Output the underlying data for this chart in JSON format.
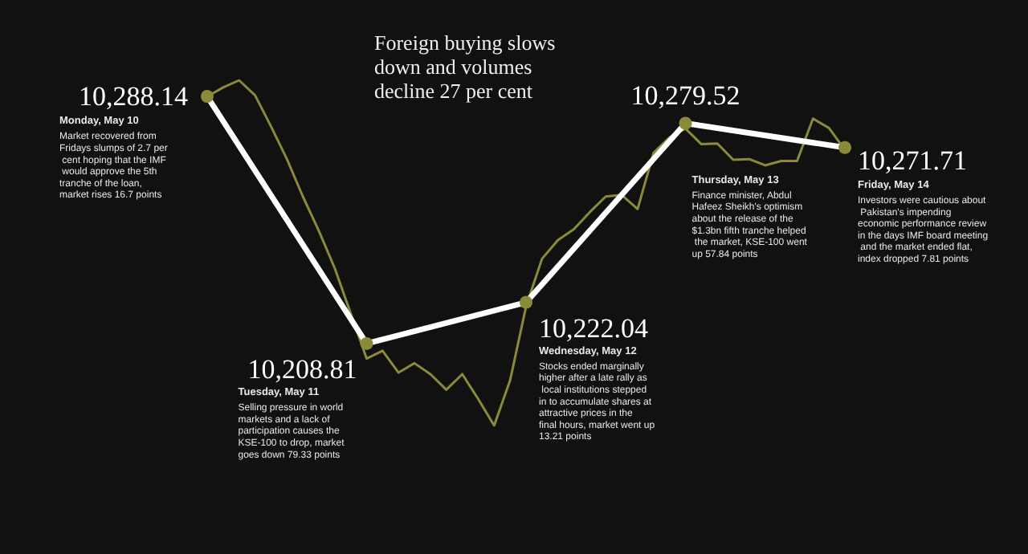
{
  "chart_data": {
    "type": "line",
    "title": "Foreign buying slows down and volumes decline 27 per cent",
    "tick_labels": false,
    "marker": "circle",
    "line_style": "solid",
    "categories": [
      null,
      null,
      null,
      null,
      null,
      null,
      null,
      null,
      null,
      null,
      null,
      null,
      null,
      null,
      null,
      null,
      null,
      null,
      null,
      null,
      null,
      null,
      null,
      null,
      null,
      null,
      null,
      null,
      null,
      null,
      null,
      null,
      null,
      null,
      null,
      null,
      null,
      null,
      null,
      null,
      null
    ],
    "series": [
      {
        "color": "#8a8a3a",
        "marker": "none",
        "values": [
          10288.1,
          10291,
          10293.3,
          10288.5,
          10278.5,
          10268,
          10256,
          10245,
          10233,
          10218.5,
          10204,
          10206.5,
          10199.5,
          10202.5,
          10199,
          10194,
          10199,
          10191,
          10182.5,
          10197,
          10220.7,
          10236,
          10242,
          10245.5,
          10251,
          10256,
          10256.5,
          10252,
          10270,
          10275,
          10277.8,
          10272.8,
          10273,
          10267.8,
          10268,
          10266,
          10267.4,
          10267.4,
          10281,
          10278,
          10271
        ]
      },
      {
        "color": "#ffffff",
        "values": [
          10288.14,
          null,
          null,
          null,
          null,
          null,
          null,
          null,
          null,
          null,
          10208.81,
          null,
          null,
          null,
          null,
          null,
          null,
          null,
          null,
          null,
          10222.04,
          null,
          null,
          null,
          null,
          null,
          null,
          null,
          null,
          null,
          10279.52,
          null,
          null,
          null,
          null,
          null,
          null,
          null,
          null,
          null,
          10271.71
        ],
        "value_labels": [
          "10,288.14",
          null,
          null,
          null,
          null,
          null,
          null,
          null,
          null,
          null,
          "10,208.81",
          null,
          null,
          null,
          null,
          null,
          null,
          null,
          null,
          null,
          "10,222.04",
          null,
          null,
          null,
          null,
          null,
          null,
          null,
          null,
          null,
          "10,279.52",
          null,
          null,
          null,
          null,
          null,
          null,
          null,
          null,
          null,
          "10,271.71"
        ]
      }
    ],
    "annotations": [
      "Monday, May 10",
      "Market recovered from Fridays slumps of 2.7 per cent hoping that the IMF would approve the 5th tranche of the loan, market rises 16.7 points",
      "Tuesday, May 11",
      "Selling pressure in world markets and a lack of participation causes the KSE-100 to drop, market goes down 79.33 points",
      "Wednesday, May 12",
      "Stocks ended marginally higher after a late rally as local institutions stepped in to accumulate shares at attractive prices in the final hours, market went up 13.21 points",
      "Thursday, May 13",
      "Finance minister, Abdul Hafeez Sheikh's optimism about the release of the $1.3bn fifth tranche helped the market, KSE-100 went up 57.84 points",
      "Friday, May 14",
      "Investors were cautious about Pakistan's impending economic performance review in the days IMF board meeting and the market ended flat, index dropped 7.81 points"
    ]
  }
}
